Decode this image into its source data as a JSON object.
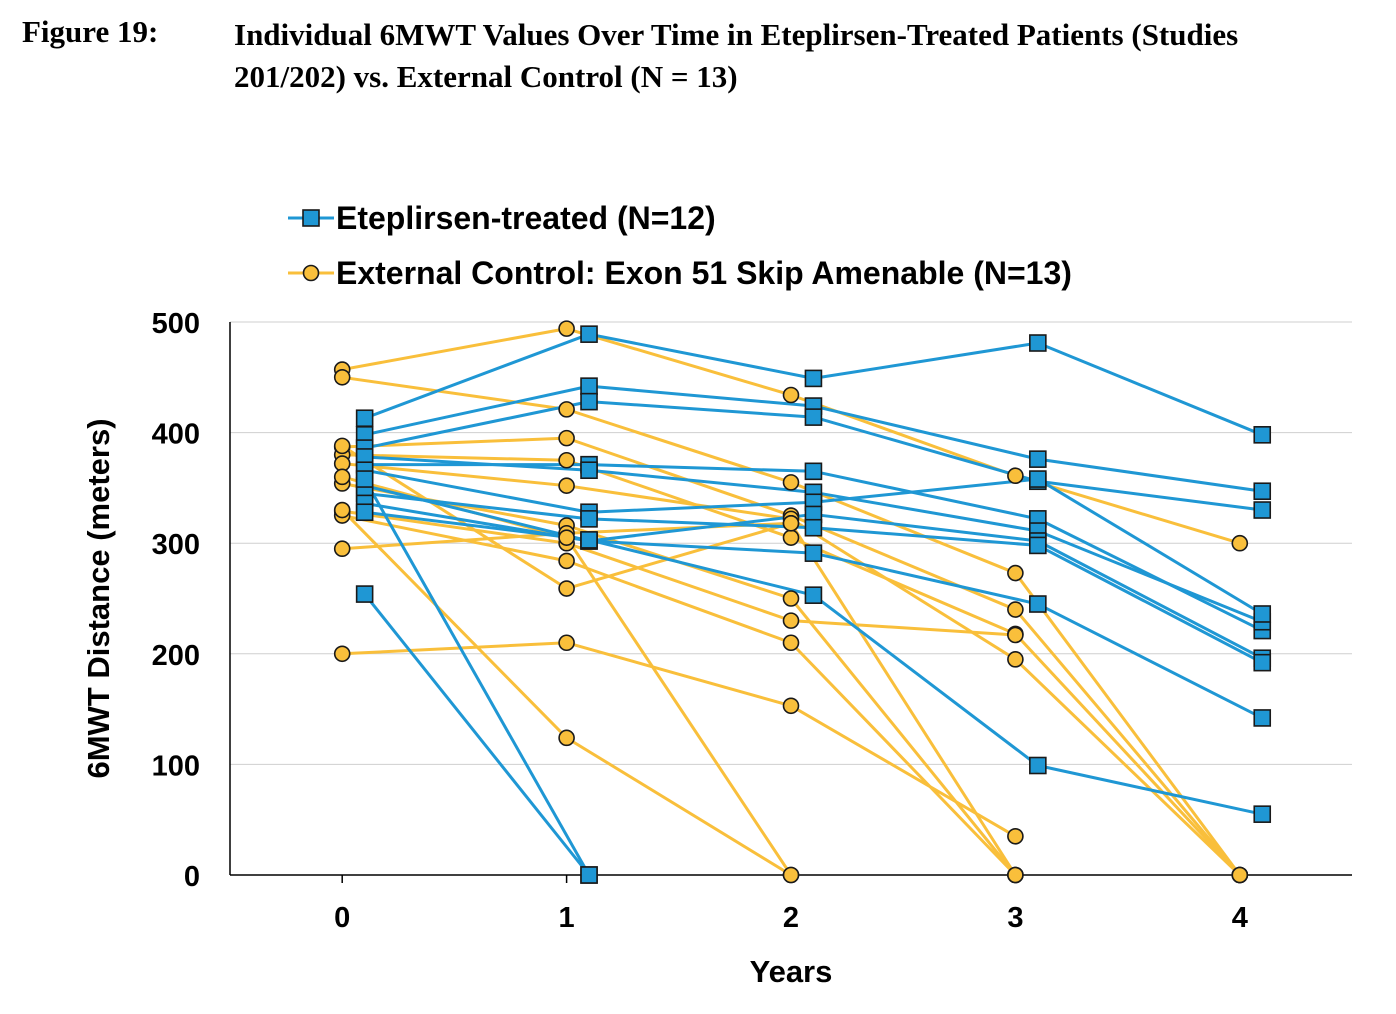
{
  "figure": {
    "label": "Figure 19:",
    "title": "Individual 6MWT Values Over Time in Eteplirsen-Treated Patients (Studies 201/202) vs. External Control (N = 13)"
  },
  "chart_data": {
    "type": "line",
    "title": "",
    "xlabel": "Years",
    "ylabel": "6MWT Distance (meters)",
    "xlim": [
      -0.5,
      4.5
    ],
    "ylim": [
      0,
      500
    ],
    "xticks": [
      "0",
      "1",
      "2",
      "3",
      "4"
    ],
    "yticks": [
      "0",
      "100",
      "200",
      "300",
      "400",
      "500"
    ],
    "grid": "horizontal",
    "legend": "top-left",
    "groups": [
      {
        "name": "Eteplirsen-treated (N=12)",
        "color": "#1f97d4",
        "marker": "square",
        "x_offset": 0.1,
        "series": [
          {
            "values": [
              413,
              489,
              449,
              481,
              398
            ]
          },
          {
            "values": [
              398,
              442,
              424,
              376,
              347
            ]
          },
          {
            "values": [
              386,
              428,
              414,
              356,
              330
            ]
          },
          {
            "values": [
              371,
              371,
              365,
              322,
              221
            ]
          },
          {
            "values": [
              378,
              366,
              346,
              311,
              229
            ]
          },
          {
            "values": [
              366,
              328,
              337,
              358,
              236
            ]
          },
          {
            "values": [
              352,
              302,
              326,
              302,
              196
            ]
          },
          {
            "values": [
              345,
              322,
              314,
              298,
              192
            ]
          },
          {
            "values": [
              336,
              302,
              291,
              245,
              142
            ]
          },
          {
            "values": [
              328,
              303,
              253,
              99,
              55
            ]
          },
          {
            "values": [
              358,
              0,
              null,
              null,
              null
            ]
          },
          {
            "values": [
              254,
              0,
              null,
              null,
              null
            ]
          }
        ]
      },
      {
        "name": "External Control: Exon 51 Skip Amenable (N=13)",
        "color": "#f9bf3b",
        "marker": "circle",
        "x_offset": 0,
        "series": [
          {
            "values": [
              457,
              494,
              434,
              361,
              300
            ]
          },
          {
            "values": [
              450,
              421,
              355,
              273,
              0
            ]
          },
          {
            "values": [
              387,
              395,
              325,
              240,
              0
            ]
          },
          {
            "values": [
              380,
              375,
              305,
              218,
              0
            ]
          },
          {
            "values": [
              372,
              352,
              322,
              195,
              0
            ]
          },
          {
            "values": [
              354,
              316,
              250,
              0,
              null
            ]
          },
          {
            "values": [
              329,
              300,
              230,
              217,
              null
            ]
          },
          {
            "values": [
              325,
              284,
              210,
              0,
              null
            ]
          },
          {
            "values": [
              295,
              309,
              318,
              0,
              null
            ]
          },
          {
            "values": [
              200,
              210,
              153,
              35,
              null
            ]
          },
          {
            "values": [
              388,
              259,
              318,
              null,
              null
            ]
          },
          {
            "values": [
              360,
              305,
              0,
              null,
              null
            ]
          },
          {
            "values": [
              330,
              124,
              0,
              null,
              null
            ]
          }
        ]
      }
    ]
  }
}
